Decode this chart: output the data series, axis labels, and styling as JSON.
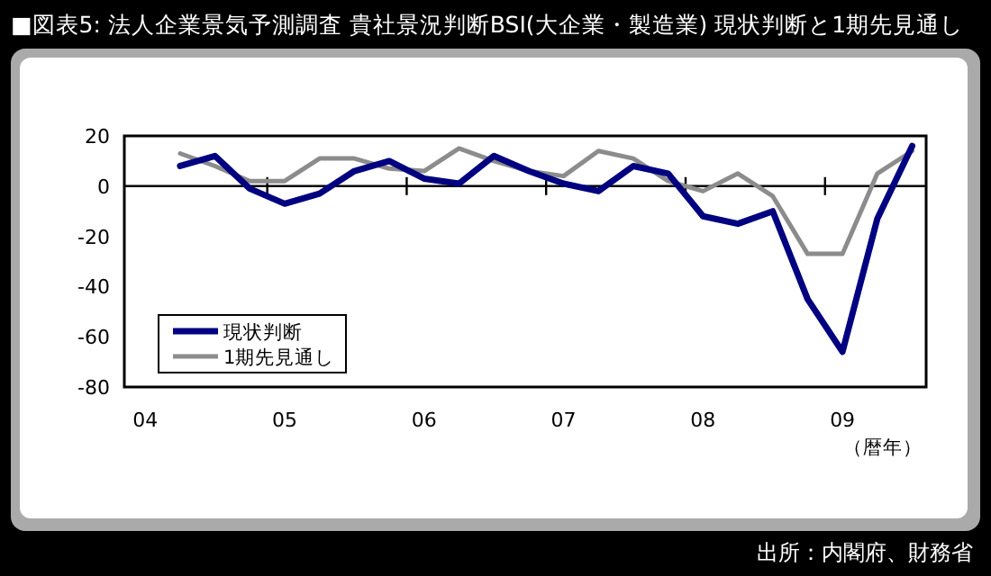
{
  "chart_data": {
    "type": "line",
    "title": "■図表5: 法人企業景気予測調査 貴社景況判断BSI(大企業・製造業) 現状判断と1期先見通し",
    "xlabel": "（暦年）",
    "annotations": [
      "出所：内閣府、財務省"
    ],
    "categories": [
      "04",
      null,
      null,
      null,
      "05",
      null,
      null,
      null,
      "06",
      null,
      null,
      null,
      "07",
      null,
      null,
      null,
      "08",
      null,
      null,
      null,
      "09",
      null,
      null
    ],
    "series": [
      {
        "name": "現状判断",
        "color": "#000080",
        "values": [
          null,
          8,
          12,
          -1,
          -7,
          -3,
          6,
          10,
          3,
          1,
          12,
          6,
          1,
          -2,
          8,
          5,
          -12,
          -15,
          -10,
          -45,
          -66,
          -13,
          16
        ]
      },
      {
        "name": "1期先見通し",
        "color": "#8c8c8c",
        "values": [
          null,
          13,
          8,
          2,
          2,
          11,
          11,
          7,
          6,
          15,
          10,
          6,
          4,
          14,
          11,
          2,
          -2,
          5,
          -4,
          -27,
          -27,
          5,
          14
        ]
      }
    ],
    "ylim": [
      -80,
      20
    ],
    "yticks": [
      -80,
      -60,
      -40,
      -20,
      0,
      20
    ],
    "legend": "bottom left",
    "ref_lines": [
      {
        "axis": "y",
        "value": 0,
        "color": "#000000"
      }
    ],
    "marker": "none",
    "line_style": "solid"
  }
}
